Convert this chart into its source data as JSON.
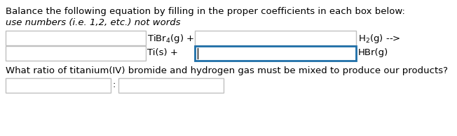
{
  "title_line1": "Balance the following equation by filling in the proper coefficients in each box below:",
  "title_line2": "use numbers (i.e. 1,2, etc.) not words",
  "bg_color": "#ffffff",
  "text_color": "#000000",
  "box_gray": "#c0c0c0",
  "box_blue": "#1e6fa8",
  "font_size_title": 9.5,
  "font_size_italic": 9.5,
  "font_size_eq": 9.5,
  "font_size_ratio": 9.5,
  "eq_row1_left_text": "TiBr$_4$(g) +",
  "eq_row1_right_text": "H$_2$(g) -->",
  "eq_row2_left_text": "Ti(s) +",
  "eq_row2_right_text": "HBr(g)",
  "ratio_text": "What ratio of titanium(IV) bromide and hydrogen gas must be mixed to produce our products?"
}
